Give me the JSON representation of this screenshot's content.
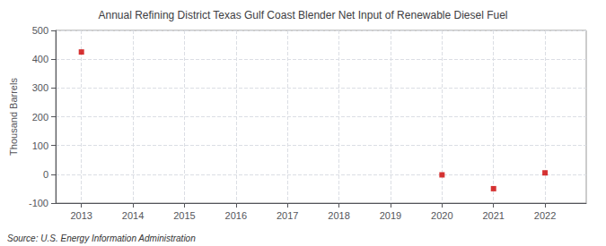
{
  "chart_data": {
    "type": "scatter",
    "title": "Annual Refining District Texas Gulf Coast Blender Net Input of Renewable Diesel Fuel",
    "ylabel": "Thousand Barrels",
    "source": "Source: U.S. Energy Information Administration",
    "x": [
      2013,
      2020,
      2021,
      2022
    ],
    "values": [
      425,
      -2,
      -50,
      5
    ],
    "color": "#cc0000",
    "marker": "square",
    "xlim": [
      2012.5,
      2022.8
    ],
    "xticks": [
      2013,
      2014,
      2015,
      2016,
      2017,
      2018,
      2019,
      2020,
      2021,
      2022
    ],
    "ylim": [
      -100,
      500
    ],
    "yticks": [
      -100,
      0,
      100,
      200,
      300,
      400,
      500
    ],
    "grid": true
  }
}
